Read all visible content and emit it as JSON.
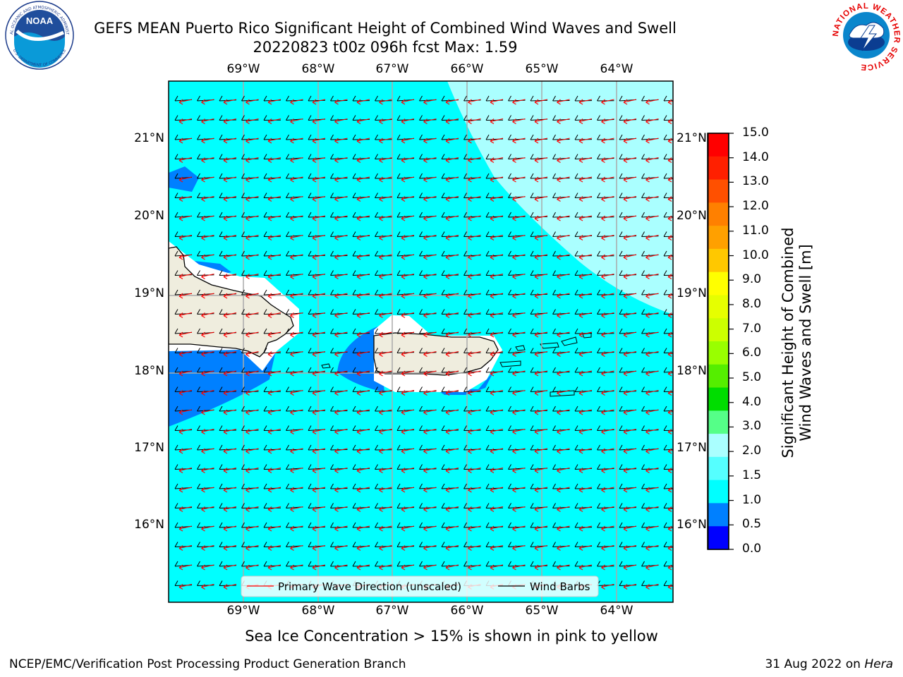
{
  "title": {
    "line1": "GEFS MEAN Puerto Rico Significant Height of Combined Wind Waves and Swell",
    "line2": "20220823 t00z 096h fcst   Max: 1.59"
  },
  "logos": {
    "noaa_text": "NOAA",
    "noaa_ring_top": "NATIONAL OCEANIC AND ATMOSPHERIC ADMINISTRATION",
    "noaa_ring_bottom": "U.S. DEPARTMENT OF COMMERCE",
    "nws_ring": "NATIONAL WEATHER SERVICE"
  },
  "map": {
    "lon_labels": [
      "69°W",
      "68°W",
      "67°W",
      "66°W",
      "65°W",
      "64°W"
    ],
    "lat_labels": [
      "21°N",
      "20°N",
      "19°N",
      "18°N",
      "17°N",
      "16°N"
    ],
    "ocean_color": "#00ffff",
    "light_band_color": "#aaffff",
    "low_band_color": "#0080ff",
    "land_color": "#efedde",
    "legend": {
      "primary_wave": "Primary Wave Direction (unscaled)",
      "wind_barbs": "Wind Barbs",
      "primary_wave_color": "#ff0000",
      "wind_barb_color": "#000000"
    }
  },
  "colorbar": {
    "label_line1": "Significant Height of Combined",
    "label_line2": "Wind Waves and Swell [m]",
    "ticks": [
      "15.0",
      "14.0",
      "13.0",
      "12.0",
      "11.0",
      "10.0",
      "9.0",
      "8.0",
      "7.0",
      "6.0",
      "5.0",
      "4.0",
      "3.0",
      "2.0",
      "1.5",
      "1.0",
      "0.5",
      "0.0"
    ],
    "colors_top_to_bottom": [
      "#ff0000",
      "#ff2000",
      "#ff5000",
      "#ff8000",
      "#ffa000",
      "#ffc800",
      "#ffff00",
      "#e6ff00",
      "#ccff00",
      "#99ff00",
      "#55ee00",
      "#00dd00",
      "#55ff88",
      "#aaffff",
      "#55ffff",
      "#00ffff",
      "#0080ff",
      "#0000ff"
    ]
  },
  "caption": "Sea Ice Concentration > 15% is shown in pink to yellow",
  "footer": {
    "left": "NCEP/EMC/Verification Post Processing Product Generation Branch",
    "right_prefix": "31 Aug 2022 on ",
    "right_machine": "Hera"
  }
}
